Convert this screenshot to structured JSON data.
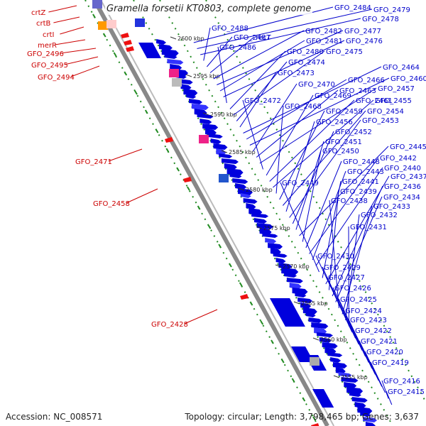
{
  "title": "Gramella forsetii KT0803, complete genome",
  "footer": {
    "accession": "Accession: NC_008571",
    "summary": "Topology: circular; Length: 3,798,465 bp; Genes: 3,637"
  },
  "colors": {
    "forward_label": "#0000cc",
    "reverse_label": "#cc0000",
    "backbone": "#888888",
    "dotted_track": "#228b22",
    "gene_forward": "#0000dd",
    "gene_reverse": "#ee1111"
  },
  "ticks": [
    {
      "label": "2600 kbp"
    },
    {
      "label": "2595 kbp"
    },
    {
      "label": "2590 kbp"
    },
    {
      "label": "2585 kbp"
    },
    {
      "label": "2580 kbp"
    },
    {
      "label": "2575 kbp"
    },
    {
      "label": "2570 kbp"
    },
    {
      "label": "2565 kbp"
    },
    {
      "label": "2560 kbp"
    },
    {
      "label": "2555 kbp"
    }
  ],
  "left_labels": [
    {
      "text": "crtZ"
    },
    {
      "text": "crtB"
    },
    {
      "text": "crtI"
    },
    {
      "text": "merR"
    },
    {
      "text": "GFO_2496"
    },
    {
      "text": "GFO_2495"
    },
    {
      "text": "GFO_2494"
    },
    {
      "text": "GFO_2471"
    },
    {
      "text": "GFO_2458"
    },
    {
      "text": "GFO_2428"
    }
  ],
  "right_labels": [
    {
      "text": "GFO_2484"
    },
    {
      "text": "GFO_2479"
    },
    {
      "text": "GFO_2478"
    },
    {
      "text": "GFO_2488"
    },
    {
      "text": "GFO_2487"
    },
    {
      "text": "recT"
    },
    {
      "text": "GFO_2482"
    },
    {
      "text": "GFO_2477"
    },
    {
      "text": "GFO_2481"
    },
    {
      "text": "GFO_2476"
    },
    {
      "text": "GFO_2486"
    },
    {
      "text": "GFO_2480"
    },
    {
      "text": "GFO_2475"
    },
    {
      "text": "GFO_2474"
    },
    {
      "text": "GFO_2473"
    },
    {
      "text": "GFO_2464"
    },
    {
      "text": "GFO_2466"
    },
    {
      "text": "GFO_2460"
    },
    {
      "text": "GFO_2470"
    },
    {
      "text": "GFO_2463"
    },
    {
      "text": "GFO_2457"
    },
    {
      "text": "GFO_2472"
    },
    {
      "text": "GFO_2469"
    },
    {
      "text": "GFO_2461"
    },
    {
      "text": "GFO_2455"
    },
    {
      "text": "GFO_2468"
    },
    {
      "text": "GFO_2459"
    },
    {
      "text": "GFO_2454"
    },
    {
      "text": "GFO_2456"
    },
    {
      "text": "GFO_2453"
    },
    {
      "text": "GFO_2452"
    },
    {
      "text": "GFO_2451"
    },
    {
      "text": "GFO_2445"
    },
    {
      "text": "GFO_2450"
    },
    {
      "text": "GFO_2448"
    },
    {
      "text": "GFO_2442"
    },
    {
      "text": "GFO_2443"
    },
    {
      "text": "GFO_2440"
    },
    {
      "text": "GFO_2449"
    },
    {
      "text": "GFO_2441"
    },
    {
      "text": "GFO_2437"
    },
    {
      "text": "GFO_2439"
    },
    {
      "text": "GFO_2436"
    },
    {
      "text": "GFO_2434"
    },
    {
      "text": "GFO_2438"
    },
    {
      "text": "GFO_2433"
    },
    {
      "text": "GFO_2432"
    },
    {
      "text": "GFO_2431"
    },
    {
      "text": "GFO_2430"
    },
    {
      "text": "GFO_2429"
    },
    {
      "text": "GFO_2427"
    },
    {
      "text": "GFO_2426"
    },
    {
      "text": "GFO_2425"
    },
    {
      "text": "GFO_2424"
    },
    {
      "text": "GFO_2423"
    },
    {
      "text": "GFO_2422"
    },
    {
      "text": "GFO_2421"
    },
    {
      "text": "GFO_2420"
    },
    {
      "text": "GFO_2419"
    },
    {
      "text": "GFO_2416"
    },
    {
      "text": "GFO_2415"
    }
  ]
}
